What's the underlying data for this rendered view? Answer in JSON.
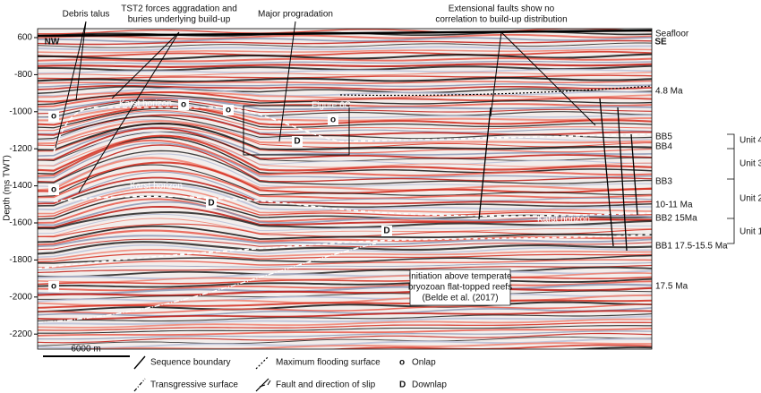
{
  "axis": {
    "title": "Depth (ms TWT)",
    "ticks": [
      "600",
      "-800",
      "-1000",
      "-1200",
      "-1400",
      "-1600",
      "-1800",
      "-2000",
      "-2200"
    ]
  },
  "corners": {
    "left": "NW",
    "right": "SE"
  },
  "annotations": {
    "debris": "Debris talus",
    "tst2": [
      "TST2 forces aggradation and",
      "buries underlying build-up"
    ],
    "progradation": "Major progradation",
    "faults": [
      "Extensional faults show no",
      "correlation to build-up distribution"
    ],
    "karst": [
      "Karst horizon",
      "Karst horizon",
      "Karst horizon"
    ],
    "figure": "Figure 6C",
    "initiation": [
      "Initiation above temperate",
      "bryozoan flat-topped reefs",
      "(Belde et al. (2017)"
    ]
  },
  "markers": [
    "o",
    "o",
    "o",
    "o",
    "o",
    "o",
    "D",
    "D",
    "D"
  ],
  "horizons": [
    "Seafloor",
    "4.8 Ma",
    "BB5",
    "BB4",
    "BB3",
    "10-11 Ma",
    "BB2 15Ma",
    "BB1 17.5-15.5 Ma",
    "17.5 Ma"
  ],
  "units": [
    "Unit 4",
    "Unit 3",
    "Unit 2",
    "Unit 1"
  ],
  "scale_bar": "6000 m",
  "legend": [
    {
      "label": "Sequence boundary"
    },
    {
      "label": "Maximum flooding surface"
    },
    {
      "symbol": "o",
      "label": "Onlap"
    },
    {
      "label": "Transgressive surface"
    },
    {
      "label": "Fault and direction of slip"
    },
    {
      "symbol": "D",
      "label": "Downlap"
    }
  ]
}
